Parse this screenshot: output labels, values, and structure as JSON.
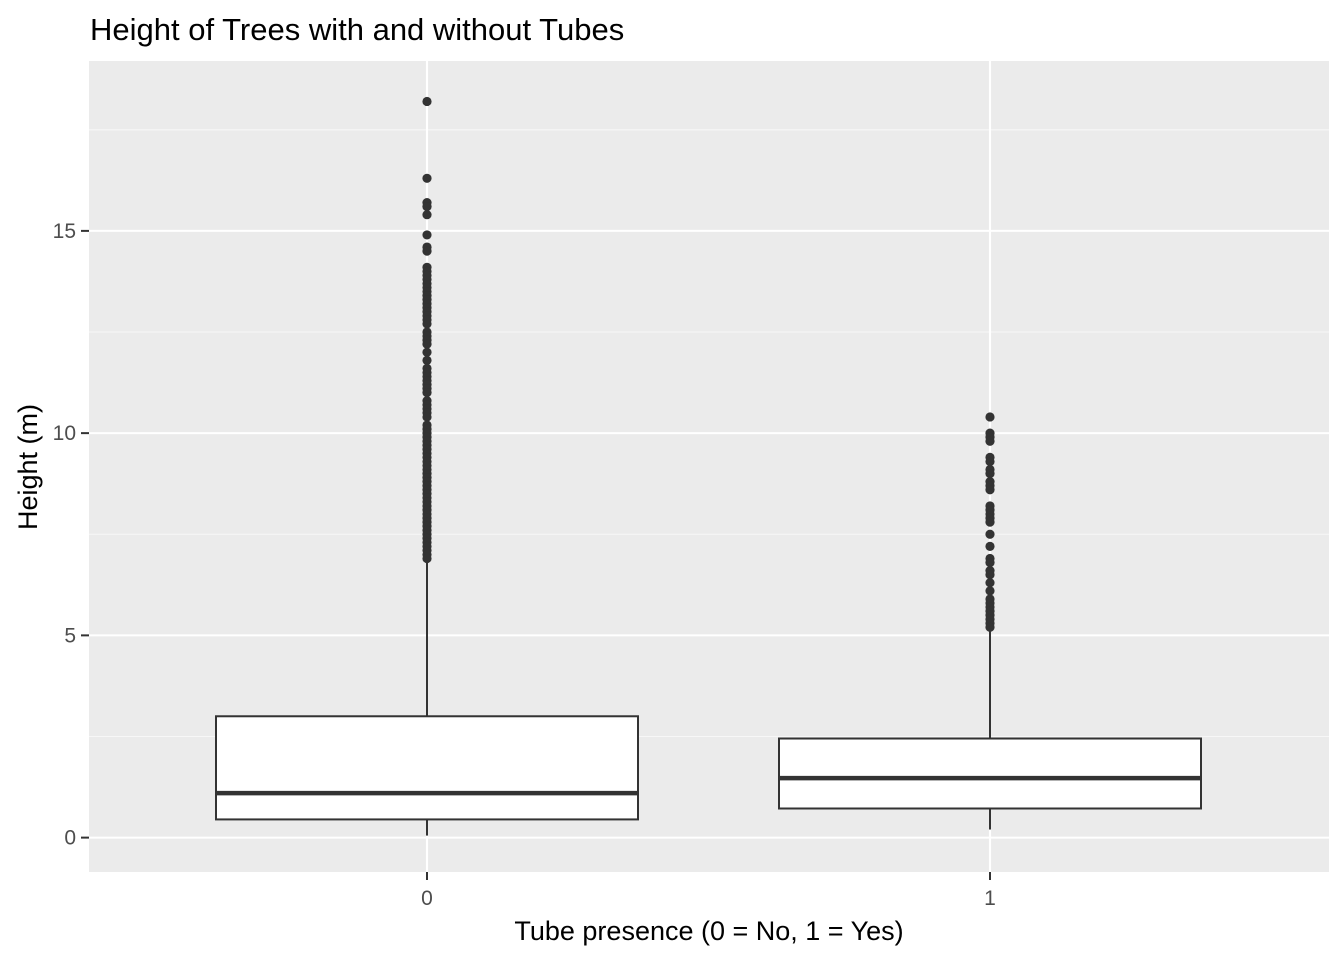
{
  "chart_data": {
    "type": "boxplot",
    "title": "Height of Trees with and without Tubes",
    "xlabel": "Tube presence (0 = No, 1 = Yes)",
    "ylabel": "Height (m)",
    "ylim": [
      -0.85,
      19.2
    ],
    "y_ticks": [
      0,
      5,
      10,
      15
    ],
    "grid": true,
    "colors": {
      "panel_background": "#ebebeb",
      "grid_line": "#ffffff",
      "box_fill": "#ffffff",
      "box_stroke": "#333333",
      "outlier": "#333333",
      "tick_mark": "#333333",
      "tick_label": "#4d4d4d"
    },
    "categories": [
      "0",
      "1"
    ],
    "boxes": [
      {
        "category": "0",
        "lower_whisker": 0.05,
        "q1": 0.45,
        "median": 1.1,
        "q3": 3.0,
        "upper_whisker": 6.85,
        "outliers": [
          18.2,
          16.3,
          15.7,
          15.6,
          15.4,
          14.9,
          14.6,
          14.5,
          14.1,
          14.0,
          13.9,
          13.8,
          13.7,
          13.6,
          13.5,
          13.4,
          13.3,
          13.2,
          13.1,
          13.0,
          12.9,
          12.8,
          12.7,
          12.5,
          12.4,
          12.3,
          12.2,
          12.0,
          11.8,
          11.6,
          11.5,
          11.4,
          11.3,
          11.2,
          11.1,
          11.0,
          10.8,
          10.7,
          10.6,
          10.5,
          10.4,
          10.2,
          10.1,
          10.0,
          9.9,
          9.8,
          9.7,
          9.6,
          9.5,
          9.4,
          9.3,
          9.2,
          9.1,
          9.0,
          8.9,
          8.8,
          8.7,
          8.6,
          8.5,
          8.4,
          8.3,
          8.2,
          8.1,
          8.0,
          7.9,
          7.8,
          7.7,
          7.6,
          7.5,
          7.4,
          7.3,
          7.2,
          7.1,
          7.0,
          6.9
        ]
      },
      {
        "category": "1",
        "lower_whisker": 0.2,
        "q1": 0.72,
        "median": 1.47,
        "q3": 2.45,
        "upper_whisker": 5.1,
        "outliers": [
          10.4,
          10.0,
          9.9,
          9.8,
          9.4,
          9.3,
          9.1,
          9.0,
          8.8,
          8.7,
          8.6,
          8.2,
          8.1,
          8.0,
          7.9,
          7.8,
          7.5,
          7.2,
          6.9,
          6.8,
          6.6,
          6.5,
          6.3,
          6.1,
          5.9,
          5.8,
          5.7,
          5.6,
          5.5,
          5.4,
          5.3,
          5.2
        ]
      }
    ]
  }
}
